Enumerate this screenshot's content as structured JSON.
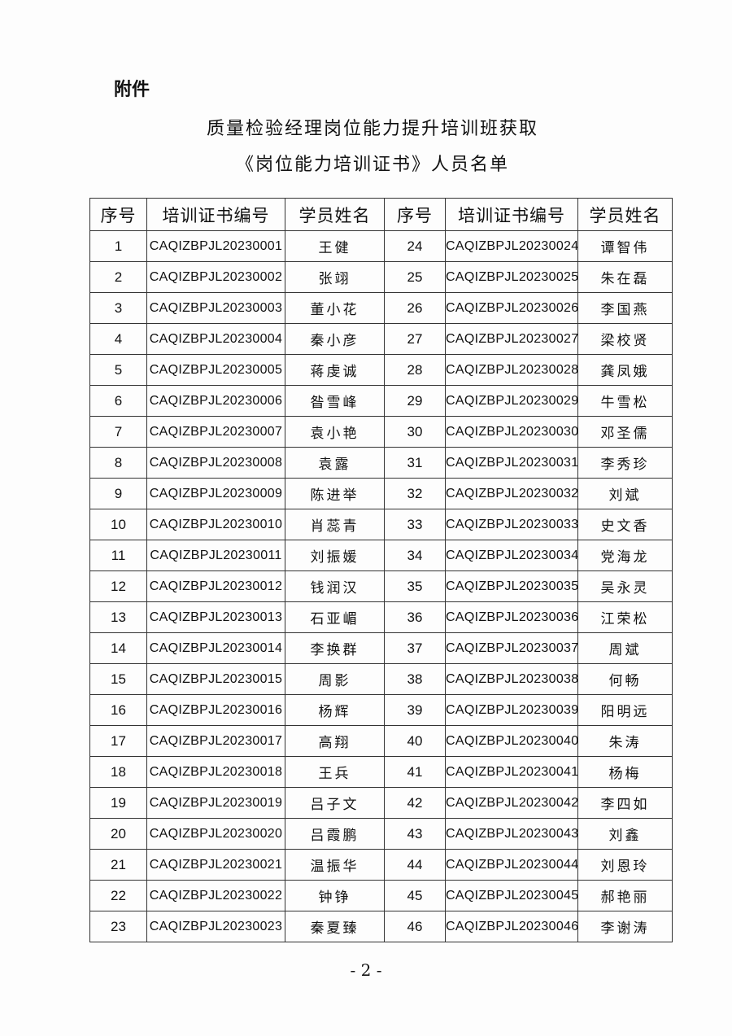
{
  "attachment_label": "附件",
  "title_line1": "质量检验经理岗位能力提升培训班获取",
  "title_line2": "《岗位能力培训证书》人员名单",
  "headers": [
    "序号",
    "培训证书编号",
    "学员姓名",
    "序号",
    "培训证书编号",
    "学员姓名"
  ],
  "left": [
    [
      "1",
      "CAQIZBPJL20230001",
      "王健"
    ],
    [
      "2",
      "CAQIZBPJL20230002",
      "张翊"
    ],
    [
      "3",
      "CAQIZBPJL20230003",
      "董小花"
    ],
    [
      "4",
      "CAQIZBPJL20230004",
      "秦小彦"
    ],
    [
      "5",
      "CAQIZBPJL20230005",
      "蒋虔诚"
    ],
    [
      "6",
      "CAQIZBPJL20230006",
      "昝雪峰"
    ],
    [
      "7",
      "CAQIZBPJL20230007",
      "袁小艳"
    ],
    [
      "8",
      "CAQIZBPJL20230008",
      "袁露"
    ],
    [
      "9",
      "CAQIZBPJL20230009",
      "陈进举"
    ],
    [
      "10",
      "CAQIZBPJL20230010",
      "肖蕊青"
    ],
    [
      "11",
      "CAQIZBPJL20230011",
      "刘振媛"
    ],
    [
      "12",
      "CAQIZBPJL20230012",
      "钱润汉"
    ],
    [
      "13",
      "CAQIZBPJL20230013",
      "石亚嵋"
    ],
    [
      "14",
      "CAQIZBPJL20230014",
      "李换群"
    ],
    [
      "15",
      "CAQIZBPJL20230015",
      "周影"
    ],
    [
      "16",
      "CAQIZBPJL20230016",
      "杨辉"
    ],
    [
      "17",
      "CAQIZBPJL20230017",
      "高翔"
    ],
    [
      "18",
      "CAQIZBPJL20230018",
      "王兵"
    ],
    [
      "19",
      "CAQIZBPJL20230019",
      "吕子文"
    ],
    [
      "20",
      "CAQIZBPJL20230020",
      "吕霞鹏"
    ],
    [
      "21",
      "CAQIZBPJL20230021",
      "温振华"
    ],
    [
      "22",
      "CAQIZBPJL20230022",
      "钟铮"
    ],
    [
      "23",
      "CAQIZBPJL20230023",
      "秦夏臻"
    ]
  ],
  "right": [
    [
      "24",
      "CAQIZBPJL20230024",
      "谭智伟"
    ],
    [
      "25",
      "CAQIZBPJL20230025",
      "朱在磊"
    ],
    [
      "26",
      "CAQIZBPJL20230026",
      "李国燕"
    ],
    [
      "27",
      "CAQIZBPJL20230027",
      "梁校贤"
    ],
    [
      "28",
      "CAQIZBPJL20230028",
      "龚凤娥"
    ],
    [
      "29",
      "CAQIZBPJL20230029",
      "牛雪松"
    ],
    [
      "30",
      "CAQIZBPJL20230030",
      "邓圣儒"
    ],
    [
      "31",
      "CAQIZBPJL20230031",
      "李秀珍"
    ],
    [
      "32",
      "CAQIZBPJL20230032",
      "刘斌"
    ],
    [
      "33",
      "CAQIZBPJL20230033",
      "史文香"
    ],
    [
      "34",
      "CAQIZBPJL20230034",
      "党海龙"
    ],
    [
      "35",
      "CAQIZBPJL20230035",
      "吴永灵"
    ],
    [
      "36",
      "CAQIZBPJL20230036",
      "江荣松"
    ],
    [
      "37",
      "CAQIZBPJL20230037",
      "周斌"
    ],
    [
      "38",
      "CAQIZBPJL20230038",
      "何畅"
    ],
    [
      "39",
      "CAQIZBPJL20230039",
      "阳明远"
    ],
    [
      "40",
      "CAQIZBPJL20230040",
      "朱涛"
    ],
    [
      "41",
      "CAQIZBPJL20230041",
      "杨梅"
    ],
    [
      "42",
      "CAQIZBPJL20230042",
      "李四如"
    ],
    [
      "43",
      "CAQIZBPJL20230043",
      "刘鑫"
    ],
    [
      "44",
      "CAQIZBPJL20230044",
      "刘恩玲"
    ],
    [
      "45",
      "CAQIZBPJL20230045",
      "郝艳丽"
    ],
    [
      "46",
      "CAQIZBPJL20230046",
      "李谢涛"
    ]
  ],
  "page_number": "- 2 -"
}
